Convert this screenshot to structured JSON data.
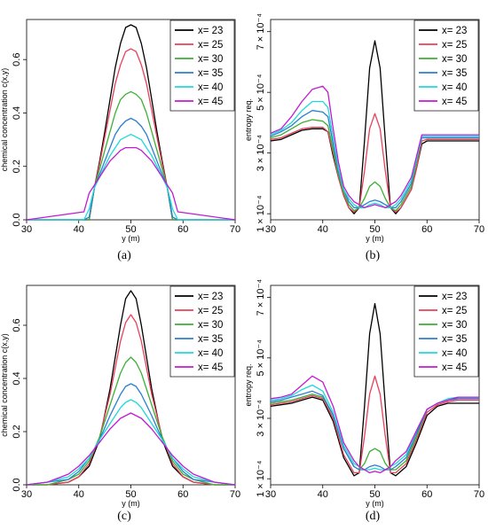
{
  "chart_data": [
    {
      "type": "line",
      "caption": "(a)",
      "xlabel": "y (m)",
      "ylabel": "chemical concentration c(x,y)",
      "xlim": [
        30,
        70
      ],
      "ylim": [
        0,
        0.75
      ],
      "xticks": [
        30,
        40,
        50,
        60,
        70
      ],
      "yticks": [
        0.0,
        0.2,
        0.4,
        0.6
      ],
      "ytick_labels": [
        "0.0",
        "0.2",
        "0.4",
        "0.6"
      ],
      "legend_position": "top-right",
      "x": [
        30,
        41,
        42,
        43,
        44,
        45,
        46,
        47,
        48,
        49,
        50,
        51,
        52,
        53,
        54,
        55,
        56,
        57,
        58,
        59,
        70
      ],
      "series": [
        {
          "name": "x= 23",
          "color": "#000000",
          "values": [
            0,
            0,
            0.0,
            0.12,
            0.22,
            0.33,
            0.45,
            0.57,
            0.66,
            0.72,
            0.73,
            0.72,
            0.66,
            0.57,
            0.45,
            0.33,
            0.22,
            0.12,
            0.0,
            0,
            0
          ]
        },
        {
          "name": "x= 25",
          "color": "#e8405a",
          "values": [
            0,
            0,
            0.0,
            0.12,
            0.21,
            0.31,
            0.41,
            0.51,
            0.58,
            0.63,
            0.64,
            0.63,
            0.58,
            0.51,
            0.41,
            0.31,
            0.21,
            0.12,
            0.0,
            0,
            0
          ]
        },
        {
          "name": "x= 30",
          "color": "#3cb034",
          "values": [
            0,
            0,
            0.0,
            0.12,
            0.19,
            0.26,
            0.33,
            0.4,
            0.45,
            0.47,
            0.48,
            0.47,
            0.45,
            0.4,
            0.33,
            0.26,
            0.19,
            0.12,
            0.0,
            0,
            0
          ]
        },
        {
          "name": "x= 35",
          "color": "#2a7fd0",
          "values": [
            0,
            0,
            0.01,
            0.12,
            0.17,
            0.22,
            0.27,
            0.32,
            0.35,
            0.37,
            0.38,
            0.37,
            0.35,
            0.32,
            0.27,
            0.22,
            0.17,
            0.12,
            0.01,
            0,
            0
          ]
        },
        {
          "name": "x= 40",
          "color": "#20d8dc",
          "values": [
            0,
            0,
            0.04,
            0.12,
            0.16,
            0.2,
            0.24,
            0.27,
            0.3,
            0.31,
            0.32,
            0.31,
            0.3,
            0.27,
            0.24,
            0.2,
            0.16,
            0.12,
            0.04,
            0,
            0
          ]
        },
        {
          "name": "x= 45",
          "color": "#c21ad2",
          "values": [
            0,
            0.03,
            0.1,
            0.13,
            0.16,
            0.19,
            0.22,
            0.24,
            0.26,
            0.27,
            0.27,
            0.27,
            0.26,
            0.24,
            0.22,
            0.19,
            0.16,
            0.13,
            0.1,
            0.03,
            0
          ]
        }
      ]
    },
    {
      "type": "line",
      "caption": "(b)",
      "xlabel": "y (m)",
      "ylabel": "entropy req.",
      "xlim": [
        30,
        70
      ],
      "ylim": [
        8e-05,
        0.00074
      ],
      "xticks": [
        30,
        40,
        50,
        60,
        70
      ],
      "yticks": [
        0.0001,
        0.0003,
        0.0005,
        0.0007
      ],
      "ytick_labels": [
        "1 × 10⁻⁴",
        "3 × 10⁻⁴",
        "5 × 10⁻⁴",
        "7 × 10⁻⁴"
      ],
      "legend_position": "top-right",
      "x": [
        30,
        32,
        34,
        36,
        38,
        40,
        41,
        42,
        43,
        44,
        45,
        46,
        47,
        48,
        49,
        50,
        51,
        52,
        53,
        54,
        55,
        56,
        57,
        58,
        59,
        60,
        62,
        64,
        66,
        68,
        70
      ],
      "series": [
        {
          "name": "x= 23",
          "color": "#000000",
          "values": [
            0.00034,
            0.000345,
            0.00036,
            0.000375,
            0.00038,
            0.00038,
            0.00037,
            0.00029,
            0.00022,
            0.00016,
            0.00012,
            0.0001,
            0.00012,
            0.00034,
            0.00058,
            0.00067,
            0.00058,
            0.00034,
            0.00012,
            0.0001,
            0.00012,
            0.00015,
            0.00018,
            0.00025,
            0.00033,
            0.00034,
            0.00034,
            0.00034,
            0.00034,
            0.00034,
            0.00034
          ]
        },
        {
          "name": "x= 25",
          "color": "#e8405a",
          "values": [
            0.000345,
            0.00035,
            0.000365,
            0.00038,
            0.000385,
            0.000385,
            0.00037,
            0.0003,
            0.00022,
            0.00016,
            0.00012,
            0.000105,
            0.00012,
            0.00024,
            0.00038,
            0.00043,
            0.00038,
            0.00024,
            0.00012,
            0.000105,
            0.00012,
            0.00015,
            0.00018,
            0.00025,
            0.00034,
            0.000345,
            0.000345,
            0.000345,
            0.000345,
            0.000345,
            0.000345
          ]
        },
        {
          "name": "x= 30",
          "color": "#3cb034",
          "values": [
            0.00035,
            0.00036,
            0.00038,
            0.0004,
            0.00041,
            0.000405,
            0.00039,
            0.00031,
            0.00023,
            0.00017,
            0.00013,
            0.00011,
            0.00012,
            0.00015,
            0.00019,
            0.000205,
            0.00019,
            0.00015,
            0.00012,
            0.00011,
            0.00013,
            0.00016,
            0.00019,
            0.00027,
            0.00035,
            0.00035,
            0.00035,
            0.00035,
            0.00035,
            0.00035,
            0.00035
          ]
        },
        {
          "name": "x= 35",
          "color": "#2a7fd0",
          "values": [
            0.000355,
            0.00037,
            0.00039,
            0.00042,
            0.00044,
            0.000435,
            0.00042,
            0.00033,
            0.00024,
            0.00018,
            0.00014,
            0.00012,
            0.00012,
            0.00013,
            0.00014,
            0.000145,
            0.00014,
            0.00013,
            0.00012,
            0.00012,
            0.00014,
            0.00017,
            0.0002,
            0.00028,
            0.00035,
            0.00035,
            0.00035,
            0.00035,
            0.00035,
            0.00035,
            0.00035
          ]
        },
        {
          "name": "x= 40",
          "color": "#20d8dc",
          "values": [
            0.00036,
            0.000375,
            0.0004,
            0.00044,
            0.00047,
            0.00047,
            0.00045,
            0.00035,
            0.00025,
            0.00018,
            0.00015,
            0.00013,
            0.00012,
            0.00012,
            0.00013,
            0.000135,
            0.00013,
            0.00012,
            0.00012,
            0.00013,
            0.00015,
            0.00018,
            0.00021,
            0.00028,
            0.000355,
            0.000355,
            0.000355,
            0.000355,
            0.000355,
            0.000355,
            0.000355
          ]
        },
        {
          "name": "x= 45",
          "color": "#c21ad2",
          "values": [
            0.000365,
            0.00038,
            0.00042,
            0.00047,
            0.00051,
            0.00052,
            0.0005,
            0.00038,
            0.00027,
            0.00019,
            0.00016,
            0.00014,
            0.00013,
            0.00012,
            0.000125,
            0.00013,
            0.000125,
            0.00012,
            0.00013,
            0.00014,
            0.00016,
            0.00019,
            0.00022,
            0.00029,
            0.00036,
            0.00036,
            0.00036,
            0.00036,
            0.00036,
            0.00036,
            0.00036
          ]
        }
      ]
    },
    {
      "type": "line",
      "caption": "(c)",
      "xlabel": "y (m)",
      "ylabel": "chemical concentration c(x,y)",
      "xlim": [
        30,
        70
      ],
      "ylim": [
        0,
        0.75
      ],
      "xticks": [
        30,
        40,
        50,
        60,
        70
      ],
      "yticks": [
        0.0,
        0.2,
        0.4,
        0.6
      ],
      "ytick_labels": [
        "0.0",
        "0.2",
        "0.4",
        "0.6"
      ],
      "legend_position": "top-right",
      "x": [
        30,
        34,
        38,
        40,
        42,
        44,
        46,
        48,
        49,
        50,
        51,
        52,
        54,
        56,
        58,
        60,
        62,
        66,
        70
      ],
      "series": [
        {
          "name": "x= 23",
          "color": "#000000",
          "values": [
            0.0,
            0.0,
            0.01,
            0.03,
            0.07,
            0.17,
            0.36,
            0.6,
            0.7,
            0.73,
            0.7,
            0.6,
            0.36,
            0.17,
            0.07,
            0.03,
            0.01,
            0.0,
            0.0
          ]
        },
        {
          "name": "x= 25",
          "color": "#e8405a",
          "values": [
            0.0,
            0.0,
            0.01,
            0.03,
            0.08,
            0.18,
            0.34,
            0.54,
            0.61,
            0.64,
            0.61,
            0.54,
            0.34,
            0.18,
            0.08,
            0.03,
            0.01,
            0.0,
            0.0
          ]
        },
        {
          "name": "x= 30",
          "color": "#3cb034",
          "values": [
            0.0,
            0.0,
            0.02,
            0.04,
            0.09,
            0.18,
            0.3,
            0.42,
            0.46,
            0.48,
            0.46,
            0.42,
            0.3,
            0.18,
            0.09,
            0.04,
            0.02,
            0.0,
            0.0
          ]
        },
        {
          "name": "x= 35",
          "color": "#2a7fd0",
          "values": [
            0.0,
            0.01,
            0.02,
            0.05,
            0.1,
            0.17,
            0.26,
            0.34,
            0.37,
            0.38,
            0.37,
            0.34,
            0.26,
            0.17,
            0.1,
            0.05,
            0.02,
            0.01,
            0.0
          ]
        },
        {
          "name": "x= 40",
          "color": "#20d8dc",
          "values": [
            0.0,
            0.01,
            0.03,
            0.06,
            0.1,
            0.17,
            0.23,
            0.29,
            0.31,
            0.32,
            0.31,
            0.29,
            0.23,
            0.17,
            0.1,
            0.06,
            0.03,
            0.01,
            0.0
          ]
        },
        {
          "name": "x= 45",
          "color": "#c21ad2",
          "values": [
            0.0,
            0.01,
            0.04,
            0.07,
            0.11,
            0.16,
            0.21,
            0.25,
            0.26,
            0.27,
            0.26,
            0.25,
            0.21,
            0.16,
            0.11,
            0.07,
            0.04,
            0.01,
            0.0
          ]
        }
      ]
    },
    {
      "type": "line",
      "caption": "(d)",
      "xlabel": "y (m)",
      "ylabel": "entropy req.",
      "xlim": [
        30,
        70
      ],
      "ylim": [
        8e-05,
        0.00074
      ],
      "xticks": [
        30,
        40,
        50,
        60,
        70
      ],
      "yticks": [
        0.0001,
        0.0003,
        0.0005,
        0.0007
      ],
      "ytick_labels": [
        "1 × 10⁻⁴",
        "3 × 10⁻⁴",
        "5 × 10⁻⁴",
        "7 × 10⁻⁴"
      ],
      "legend_position": "top-right",
      "x": [
        30,
        32,
        34,
        36,
        38,
        40,
        42,
        44,
        46,
        47,
        48,
        49,
        50,
        51,
        52,
        53,
        54,
        56,
        58,
        60,
        62,
        64,
        66,
        68,
        70
      ],
      "series": [
        {
          "name": "x= 23",
          "color": "#000000",
          "values": [
            0.00034,
            0.000345,
            0.00035,
            0.00036,
            0.00037,
            0.00036,
            0.00029,
            0.00017,
            0.00011,
            0.00012,
            0.00034,
            0.00058,
            0.00068,
            0.00058,
            0.00034,
            0.00012,
            0.00011,
            0.00014,
            0.00022,
            0.00031,
            0.00034,
            0.00035,
            0.00035,
            0.00035,
            0.00035
          ]
        },
        {
          "name": "x= 25",
          "color": "#e8405a",
          "values": [
            0.000345,
            0.00035,
            0.000355,
            0.000365,
            0.000375,
            0.000365,
            0.0003,
            0.00018,
            0.00012,
            0.00012,
            0.00024,
            0.00038,
            0.00044,
            0.00038,
            0.00024,
            0.00012,
            0.00012,
            0.00015,
            0.00023,
            0.00032,
            0.000345,
            0.000355,
            0.00036,
            0.00036,
            0.00036
          ]
        },
        {
          "name": "x= 30",
          "color": "#3cb034",
          "values": [
            0.00035,
            0.000355,
            0.00036,
            0.00037,
            0.00038,
            0.00037,
            0.00031,
            0.0002,
            0.00014,
            0.00013,
            0.00015,
            0.00019,
            0.0002,
            0.00019,
            0.00015,
            0.00013,
            0.00013,
            0.00016,
            0.00024,
            0.00033,
            0.00035,
            0.00036,
            0.000365,
            0.000365,
            0.000365
          ]
        },
        {
          "name": "x= 35",
          "color": "#2a7fd0",
          "values": [
            0.000355,
            0.00036,
            0.00037,
            0.00038,
            0.00039,
            0.000375,
            0.00031,
            0.0002,
            0.00014,
            0.00013,
            0.00013,
            0.00014,
            0.000145,
            0.00014,
            0.00013,
            0.00013,
            0.00014,
            0.00017,
            0.00025,
            0.00033,
            0.00035,
            0.00036,
            0.000365,
            0.000365,
            0.000365
          ]
        },
        {
          "name": "x= 40",
          "color": "#20d8dc",
          "values": [
            0.00036,
            0.000365,
            0.000375,
            0.000395,
            0.00041,
            0.00039,
            0.00032,
            0.00021,
            0.00015,
            0.00014,
            0.00013,
            0.00013,
            0.000135,
            0.00013,
            0.00013,
            0.00014,
            0.00015,
            0.00018,
            0.00026,
            0.00033,
            0.00035,
            0.000365,
            0.00037,
            0.00037,
            0.00037
          ]
        },
        {
          "name": "x= 45",
          "color": "#c21ad2",
          "values": [
            0.000365,
            0.00037,
            0.00038,
            0.00041,
            0.00044,
            0.00042,
            0.00034,
            0.00022,
            0.00016,
            0.00014,
            0.00013,
            0.00012,
            0.000125,
            0.00012,
            0.00013,
            0.00014,
            0.00016,
            0.00019,
            0.00026,
            0.00033,
            0.00035,
            0.00036,
            0.00037,
            0.00037,
            0.00037
          ]
        }
      ]
    }
  ]
}
